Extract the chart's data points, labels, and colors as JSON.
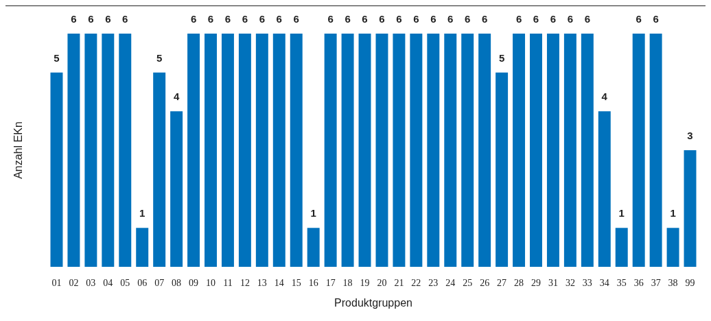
{
  "chart_data": {
    "type": "bar",
    "xlabel": "Produktgruppen",
    "ylabel": "Anzahl EKn",
    "categories": [
      "01",
      "02",
      "03",
      "04",
      "05",
      "06",
      "07",
      "08",
      "09",
      "10",
      "11",
      "12",
      "13",
      "14",
      "15",
      "16",
      "17",
      "18",
      "19",
      "20",
      "21",
      "22",
      "23",
      "24",
      "25",
      "26",
      "27",
      "28",
      "29",
      "31",
      "32",
      "33",
      "34",
      "35",
      "36",
      "37",
      "38",
      "99"
    ],
    "values": [
      5,
      6,
      6,
      6,
      6,
      1,
      5,
      4,
      6,
      6,
      6,
      6,
      6,
      6,
      6,
      1,
      6,
      6,
      6,
      6,
      6,
      6,
      6,
      6,
      6,
      6,
      5,
      6,
      6,
      6,
      6,
      6,
      4,
      1,
      6,
      6,
      1,
      3
    ],
    "color": "#0072bc",
    "data_labels": true,
    "grid": false
  }
}
